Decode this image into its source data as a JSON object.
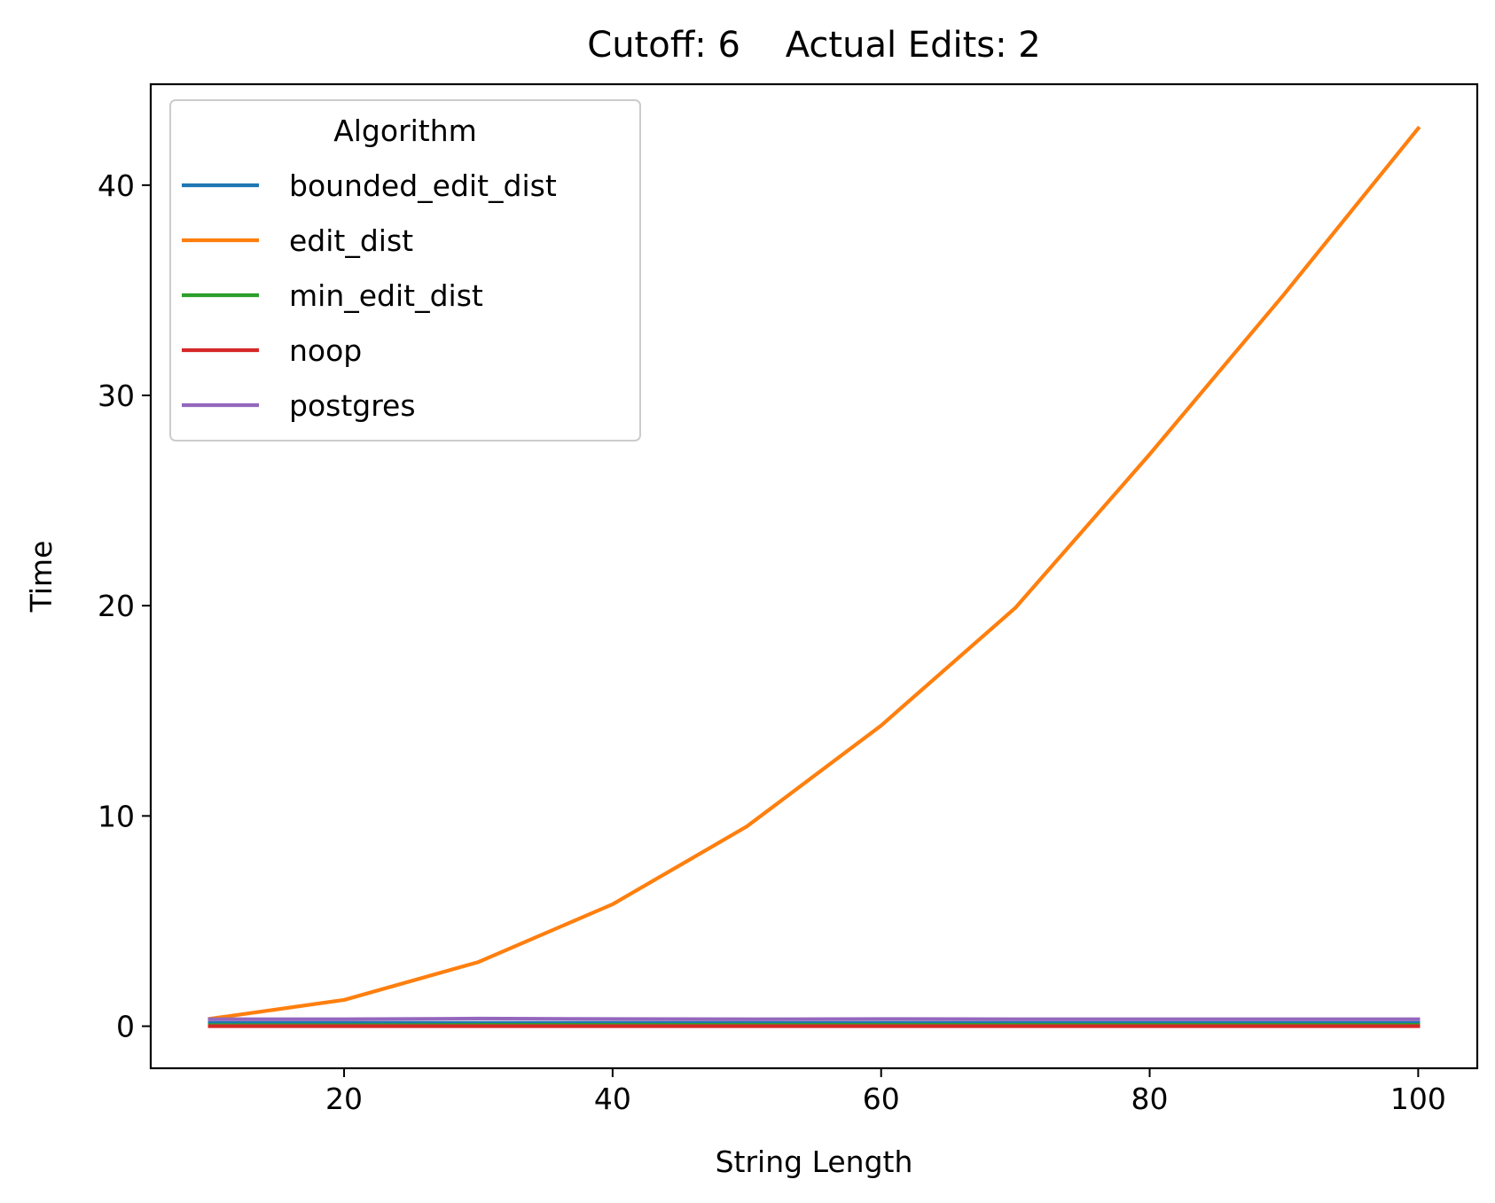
{
  "chart_data": {
    "type": "line",
    "title": "Cutoff: 6    Actual Edits: 2",
    "xlabel": "String Length",
    "ylabel": "Time",
    "xlim": [
      5.6,
      104.4
    ],
    "ylim": [
      -2.0,
      44.8
    ],
    "xticks": [
      20,
      40,
      60,
      80,
      100
    ],
    "yticks": [
      0,
      10,
      20,
      30,
      40
    ],
    "grid": false,
    "legend": {
      "title": "Algorithm",
      "placement": "top-left"
    },
    "x": [
      10,
      20,
      30,
      40,
      50,
      60,
      70,
      80,
      90,
      100
    ],
    "series": [
      {
        "name": "bounded_edit_dist",
        "color": "#1f77b4",
        "values": [
          0.15,
          0.15,
          0.15,
          0.15,
          0.15,
          0.15,
          0.15,
          0.15,
          0.15,
          0.15
        ]
      },
      {
        "name": "edit_dist",
        "color": "#ff7f0e",
        "values": [
          0.35,
          1.25,
          3.05,
          5.8,
          9.5,
          14.3,
          19.9,
          27.2,
          34.8,
          42.7
        ]
      },
      {
        "name": "min_edit_dist",
        "color": "#2ca02c",
        "values": [
          0.05,
          0.05,
          0.06,
          0.06,
          0.06,
          0.06,
          0.06,
          0.06,
          0.06,
          0.06
        ]
      },
      {
        "name": "noop",
        "color": "#d62728",
        "values": [
          0.0,
          0.0,
          0.0,
          0.0,
          0.0,
          0.0,
          0.0,
          0.0,
          0.0,
          0.0
        ]
      },
      {
        "name": "postgres",
        "color": "#9467bd",
        "values": [
          0.33,
          0.33,
          0.36,
          0.34,
          0.33,
          0.34,
          0.33,
          0.33,
          0.33,
          0.33
        ]
      }
    ]
  }
}
